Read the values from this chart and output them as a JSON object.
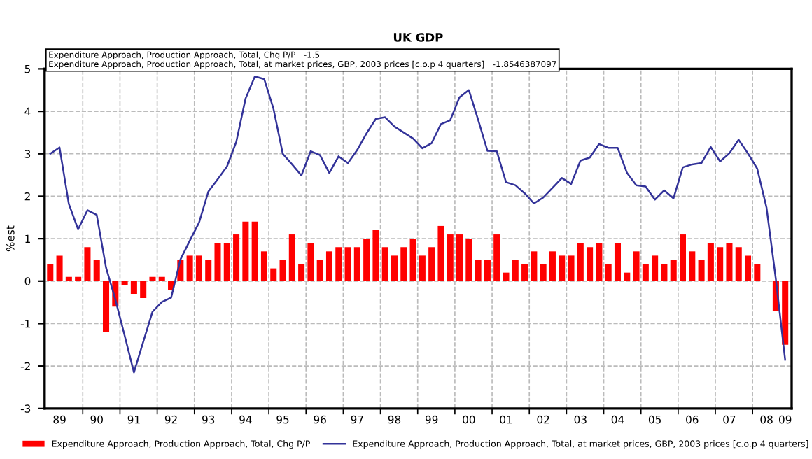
{
  "chart_data": {
    "type": "bar",
    "title": "UK GDP",
    "ylabel": "%est",
    "categories": [
      null,
      "89",
      null,
      null,
      null,
      "90",
      null,
      null,
      null,
      "91",
      null,
      null,
      null,
      "92",
      null,
      null,
      null,
      "93",
      null,
      null,
      null,
      "94",
      null,
      null,
      null,
      "95",
      null,
      null,
      null,
      "96",
      null,
      null,
      null,
      "97",
      null,
      null,
      null,
      "98",
      null,
      null,
      null,
      "99",
      null,
      null,
      null,
      "00",
      null,
      null,
      null,
      "01",
      null,
      null,
      null,
      "02",
      null,
      null,
      null,
      "03",
      null,
      null,
      null,
      "04",
      null,
      null,
      null,
      "05",
      null,
      null,
      null,
      "06",
      null,
      null,
      null,
      "07",
      null,
      null,
      null,
      "08",
      null,
      "09"
    ],
    "series": [
      {
        "name": "Expenditure Approach, Production Approach, Total, Chg P/P",
        "color": "#ff0000",
        "values": [
          0.4,
          0.6,
          0.1,
          0.1,
          0.8,
          0.5,
          -1.2,
          -0.6,
          -0.1,
          -0.3,
          -0.4,
          0.1,
          0.1,
          -0.2,
          0.5,
          0.6,
          0.6,
          0.5,
          0.9,
          0.9,
          1.1,
          1.4,
          1.4,
          0.7,
          0.3,
          0.5,
          1.1,
          0.4,
          0.9,
          0.5,
          0.7,
          0.8,
          0.8,
          0.8,
          1.0,
          1.2,
          0.8,
          0.6,
          0.8,
          1.0,
          0.6,
          0.8,
          1.3,
          1.1,
          1.1,
          1.0,
          0.5,
          0.5,
          1.1,
          0.2,
          0.5,
          0.4,
          0.7,
          0.4,
          0.7,
          0.6,
          0.6,
          0.9,
          0.8,
          0.9,
          0.4,
          0.9,
          0.2,
          0.7,
          0.4,
          0.6,
          0.4,
          0.5,
          1.1,
          0.7,
          0.5,
          0.9,
          0.8,
          0.9,
          0.8,
          0.6,
          0.4,
          0.0,
          -0.7,
          -1.5
        ]
      },
      {
        "name": "Expenditure Approach, Production Approach, Total, at market prices, GBP, 2003 prices [c.o.p 4 quarters]",
        "type": "line",
        "color": "#333399",
        "values": [
          3.0,
          3.15,
          1.82,
          1.22,
          1.67,
          1.56,
          0.32,
          -0.43,
          -1.28,
          -2.15,
          -1.43,
          -0.72,
          -0.49,
          -0.39,
          0.51,
          0.95,
          1.38,
          2.11,
          2.4,
          2.7,
          3.28,
          4.3,
          4.82,
          4.76,
          4.06,
          3.0,
          2.75,
          2.49,
          3.06,
          2.97,
          2.55,
          2.94,
          2.78,
          3.09,
          3.48,
          3.82,
          3.86,
          3.64,
          3.5,
          3.36,
          3.13,
          3.25,
          3.7,
          3.79,
          4.33,
          4.5,
          3.8,
          3.07,
          3.06,
          2.33,
          2.26,
          2.07,
          1.83,
          1.97,
          2.2,
          2.43,
          2.29,
          2.84,
          2.91,
          3.23,
          3.14,
          3.14,
          2.55,
          2.26,
          2.23,
          1.92,
          2.14,
          1.95,
          2.68,
          2.75,
          2.78,
          3.16,
          2.82,
          3.01,
          3.33,
          3.01,
          2.65,
          1.73,
          0.05,
          -1.85
        ]
      }
    ],
    "ylim": [
      -3,
      5
    ],
    "yticks": [
      -3,
      -2,
      -1,
      0,
      1,
      2,
      3,
      4,
      5
    ],
    "grid": true,
    "legend": "bottom",
    "annotations": [
      "Expenditure Approach, Production Approach, Total, Chg P/P   -1.5",
      "Expenditure Approach, Production Approach, Total, at market prices, GBP, 2003 prices [c.o.p 4 quarters]   -1.8546387097"
    ]
  }
}
